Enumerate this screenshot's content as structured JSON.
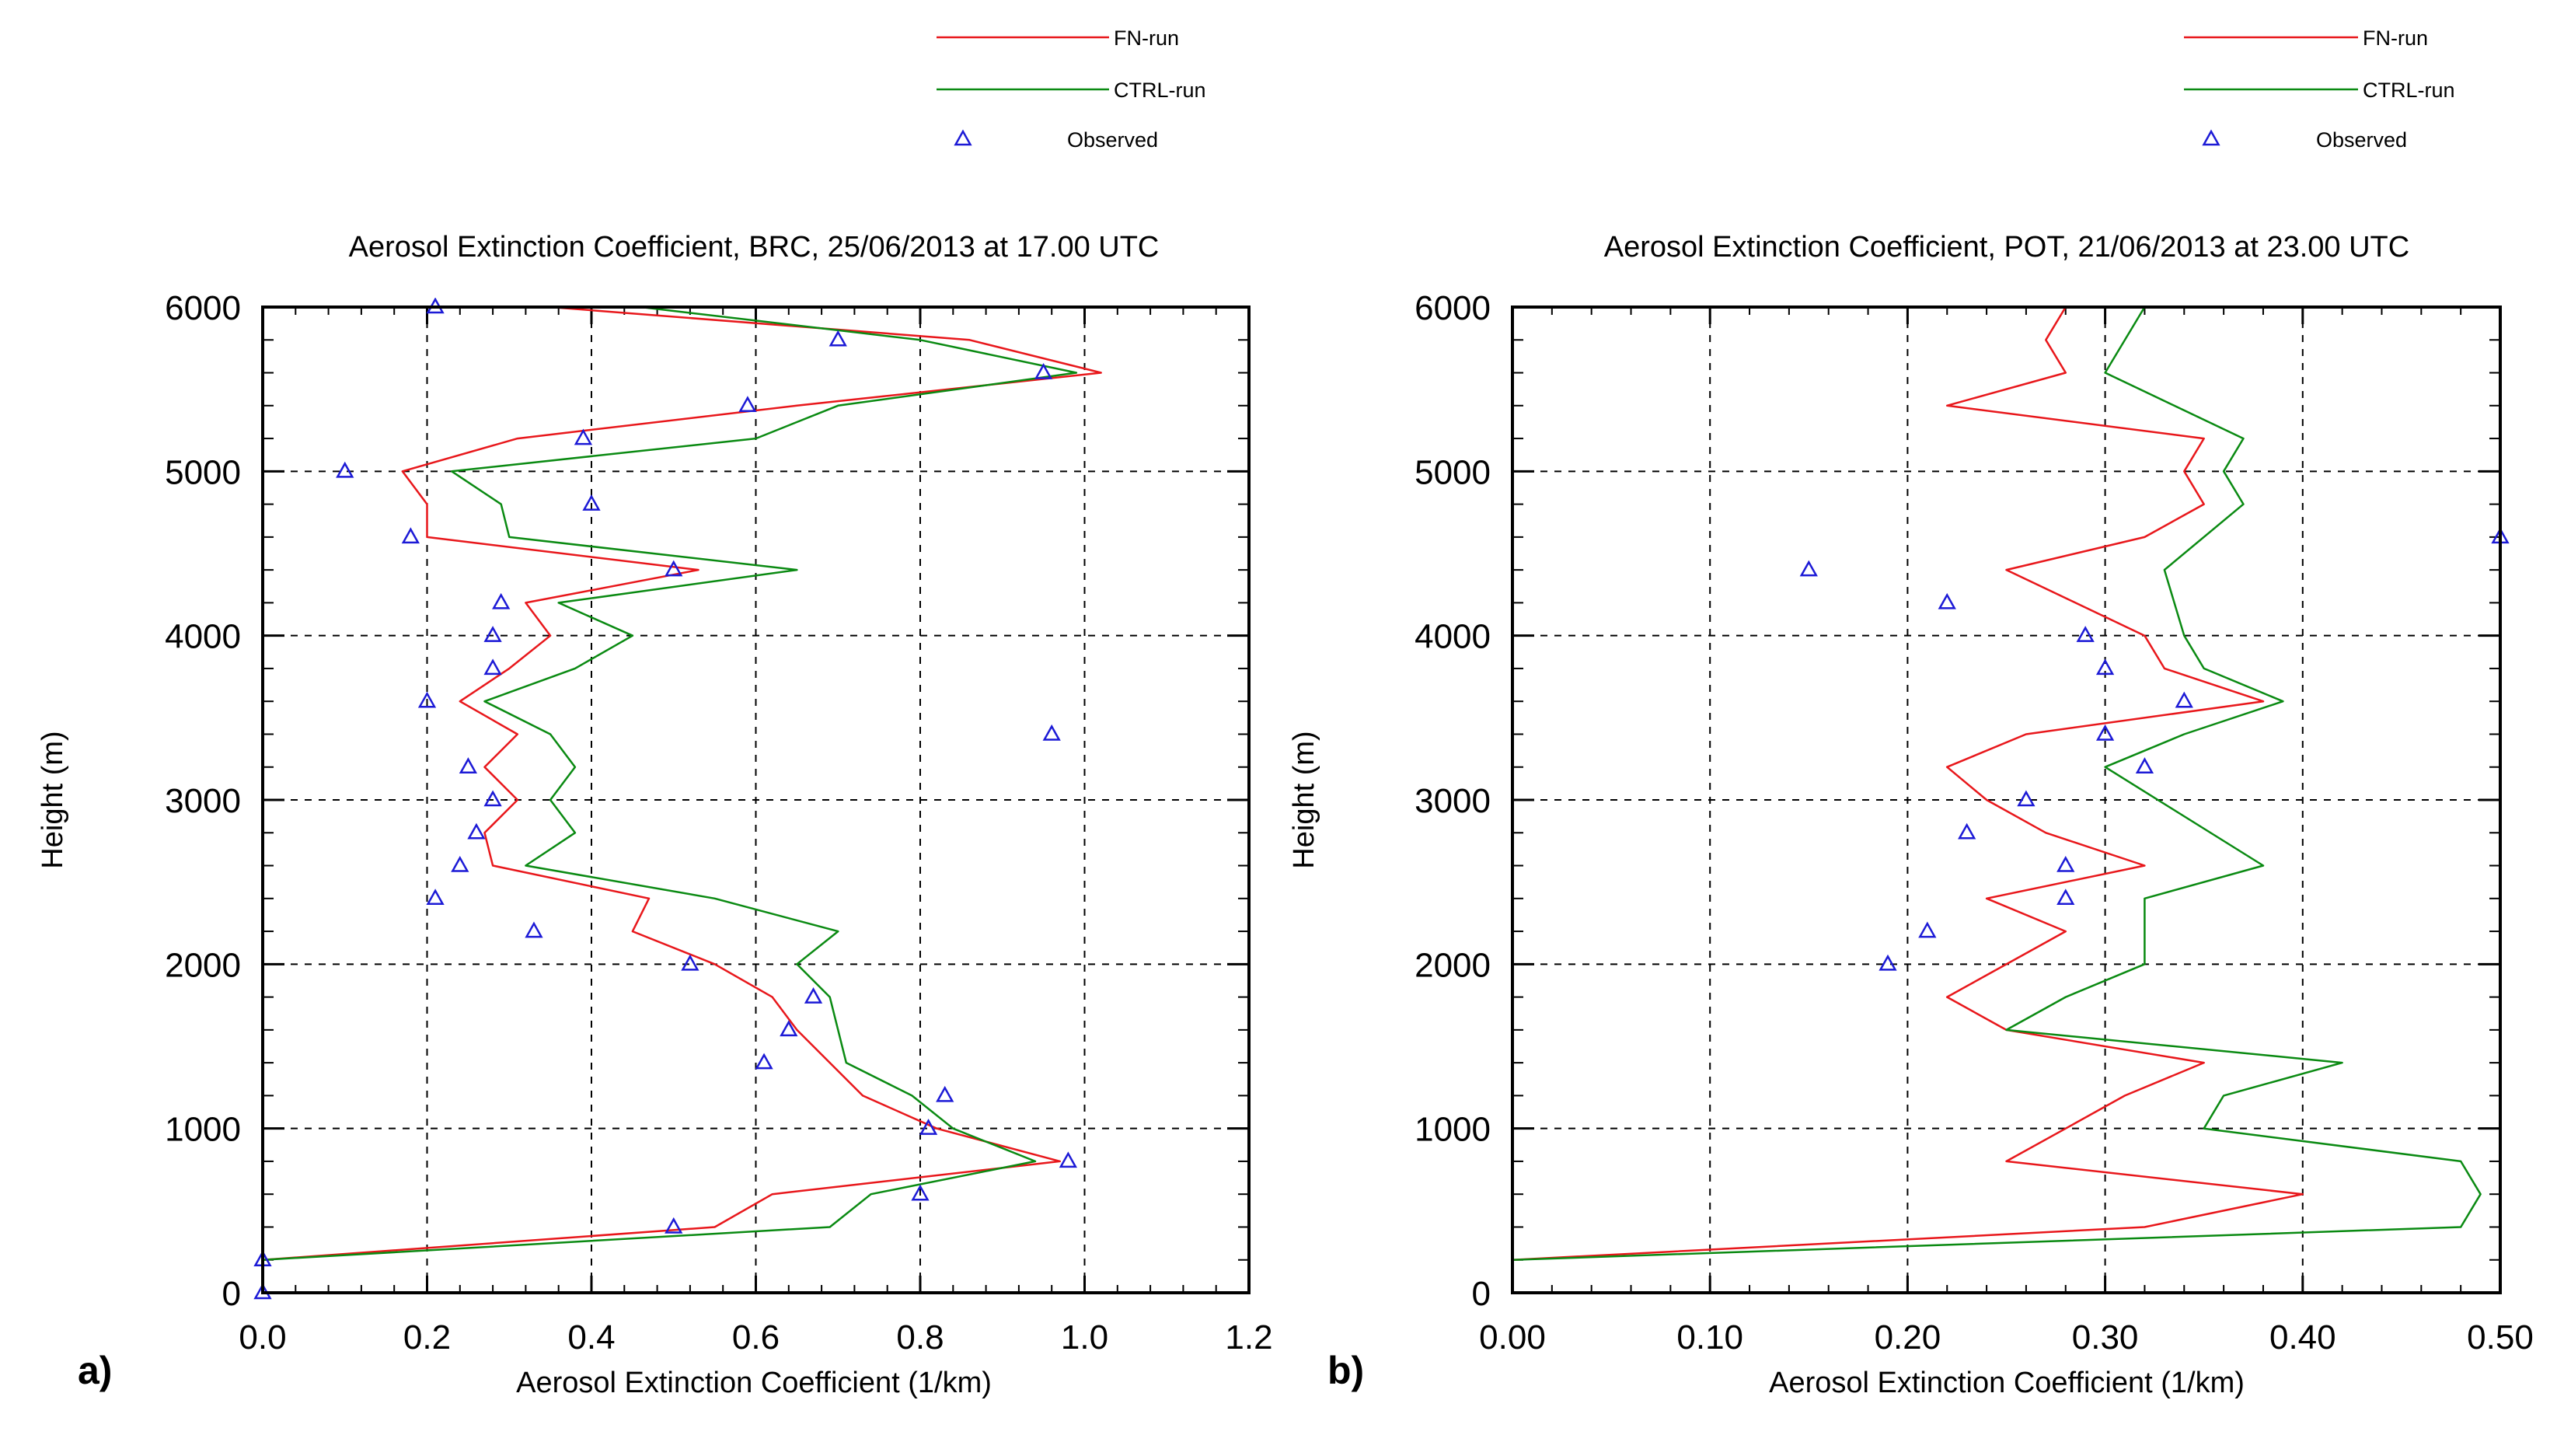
{
  "figure": {
    "series_styles": {
      "FN-run": {
        "color": "#e8171b",
        "kind": "line"
      },
      "CTRL-run": {
        "color": "#0a8a12",
        "kind": "line"
      },
      "Observed": {
        "color": "#1c1ad6",
        "kind": "marker",
        "marker": "triangle-icon"
      }
    }
  },
  "chart_data": [
    {
      "panel_label": "a)",
      "type": "line",
      "title": "Aerosol Extinction Coefficient, BRC, 25/06/2013 at 17.00 UTC",
      "xlabel": "Aerosol Extinction Coefficient (1/km)",
      "ylabel": "Height (m)",
      "xlim": [
        0,
        1.2
      ],
      "ylim": [
        0,
        6000
      ],
      "xticks": [
        "0.0",
        "0.2",
        "0.4",
        "0.6",
        "0.8",
        "1.0",
        "1.2"
      ],
      "xtick_values": [
        0,
        0.2,
        0.4,
        0.6,
        0.8,
        1.0,
        1.2
      ],
      "yticks": [
        "0",
        "1000",
        "2000",
        "3000",
        "4000",
        "5000",
        "6000"
      ],
      "ytick_values": [
        0,
        1000,
        2000,
        3000,
        4000,
        5000,
        6000
      ],
      "legend": [
        "FN-run",
        "CTRL-run",
        "Observed"
      ],
      "grid": true,
      "series": [
        {
          "name": "FN-run",
          "points": [
            [
              0,
              200
            ],
            [
              0.55,
              400
            ],
            [
              0.62,
              600
            ],
            [
              0.97,
              800
            ],
            [
              0.82,
              1000
            ],
            [
              0.73,
              1200
            ],
            [
              0.69,
              1400
            ],
            [
              0.65,
              1600
            ],
            [
              0.62,
              1800
            ],
            [
              0.55,
              2000
            ],
            [
              0.45,
              2200
            ],
            [
              0.47,
              2400
            ],
            [
              0.28,
              2600
            ],
            [
              0.27,
              2800
            ],
            [
              0.31,
              3000
            ],
            [
              0.27,
              3200
            ],
            [
              0.31,
              3400
            ],
            [
              0.24,
              3600
            ],
            [
              0.3,
              3800
            ],
            [
              0.35,
              4000
            ],
            [
              0.32,
              4200
            ],
            [
              0.53,
              4400
            ],
            [
              0.2,
              4600
            ],
            [
              0.2,
              4800
            ],
            [
              0.17,
              5000
            ],
            [
              0.31,
              5200
            ],
            [
              0.65,
              5400
            ],
            [
              1.02,
              5600
            ],
            [
              0.86,
              5800
            ],
            [
              0.35,
              6000
            ]
          ]
        },
        {
          "name": "CTRL-run",
          "points": [
            [
              0,
              200
            ],
            [
              0.69,
              400
            ],
            [
              0.74,
              600
            ],
            [
              0.94,
              800
            ],
            [
              0.84,
              1000
            ],
            [
              0.79,
              1200
            ],
            [
              0.71,
              1400
            ],
            [
              0.7,
              1600
            ],
            [
              0.69,
              1800
            ],
            [
              0.65,
              2000
            ],
            [
              0.7,
              2200
            ],
            [
              0.55,
              2400
            ],
            [
              0.32,
              2600
            ],
            [
              0.38,
              2800
            ],
            [
              0.35,
              3000
            ],
            [
              0.38,
              3200
            ],
            [
              0.35,
              3400
            ],
            [
              0.27,
              3600
            ],
            [
              0.38,
              3800
            ],
            [
              0.45,
              4000
            ],
            [
              0.36,
              4200
            ],
            [
              0.65,
              4400
            ],
            [
              0.3,
              4600
            ],
            [
              0.29,
              4800
            ],
            [
              0.23,
              5000
            ],
            [
              0.6,
              5200
            ],
            [
              0.7,
              5400
            ],
            [
              0.99,
              5600
            ],
            [
              0.8,
              5800
            ],
            [
              0.46,
              6000
            ]
          ]
        },
        {
          "name": "Observed",
          "points": [
            [
              0,
              0
            ],
            [
              0,
              200
            ],
            [
              0.5,
              400
            ],
            [
              0.8,
              600
            ],
            [
              0.98,
              800
            ],
            [
              0.81,
              1000
            ],
            [
              0.83,
              1200
            ],
            [
              0.61,
              1400
            ],
            [
              0.64,
              1600
            ],
            [
              0.67,
              1800
            ],
            [
              0.52,
              2000
            ],
            [
              0.33,
              2200
            ],
            [
              0.21,
              2400
            ],
            [
              0.24,
              2600
            ],
            [
              0.26,
              2800
            ],
            [
              0.28,
              3000
            ],
            [
              0.25,
              3200
            ],
            [
              0.96,
              3400
            ],
            [
              0.2,
              3600
            ],
            [
              0.28,
              3800
            ],
            [
              0.28,
              4000
            ],
            [
              0.29,
              4200
            ],
            [
              0.5,
              4400
            ],
            [
              0.18,
              4600
            ],
            [
              0.4,
              4800
            ],
            [
              0.1,
              5000
            ],
            [
              0.39,
              5200
            ],
            [
              0.59,
              5400
            ],
            [
              0.95,
              5600
            ],
            [
              0.7,
              5800
            ],
            [
              0.21,
              6000
            ]
          ]
        }
      ]
    },
    {
      "panel_label": "b)",
      "type": "line",
      "title": "Aerosol Extinction Coefficient, POT, 21/06/2013 at 23.00 UTC",
      "xlabel": "Aerosol Extinction Coefficient (1/km)",
      "ylabel": "Height (m)",
      "xlim": [
        0,
        0.5
      ],
      "ylim": [
        0,
        6000
      ],
      "xticks": [
        "0.00",
        "0.10",
        "0.20",
        "0.30",
        "0.40",
        "0.50"
      ],
      "xtick_values": [
        0,
        0.1,
        0.2,
        0.3,
        0.4,
        0.5
      ],
      "yticks": [
        "0",
        "1000",
        "2000",
        "3000",
        "4000",
        "5000",
        "6000"
      ],
      "ytick_values": [
        0,
        1000,
        2000,
        3000,
        4000,
        5000,
        6000
      ],
      "legend": [
        "FN-run",
        "CTRL-run",
        "Observed"
      ],
      "grid": true,
      "series": [
        {
          "name": "FN-run",
          "points": [
            [
              0,
              200
            ],
            [
              0.32,
              400
            ],
            [
              0.4,
              600
            ],
            [
              0.25,
              800
            ],
            [
              0.28,
              1000
            ],
            [
              0.31,
              1200
            ],
            [
              0.35,
              1400
            ],
            [
              0.25,
              1600
            ],
            [
              0.22,
              1800
            ],
            [
              0.28,
              2200
            ],
            [
              0.24,
              2400
            ],
            [
              0.32,
              2600
            ],
            [
              0.27,
              2800
            ],
            [
              0.24,
              3000
            ],
            [
              0.22,
              3200
            ],
            [
              0.26,
              3400
            ],
            [
              0.38,
              3600
            ],
            [
              0.33,
              3800
            ],
            [
              0.32,
              4000
            ],
            [
              0.25,
              4400
            ],
            [
              0.32,
              4600
            ],
            [
              0.35,
              4800
            ],
            [
              0.34,
              5000
            ],
            [
              0.35,
              5200
            ],
            [
              0.22,
              5400
            ],
            [
              0.28,
              5600
            ],
            [
              0.27,
              5800
            ],
            [
              0.28,
              6000
            ]
          ]
        },
        {
          "name": "CTRL-run",
          "points": [
            [
              0,
              200
            ],
            [
              0.48,
              400
            ],
            [
              0.49,
              600
            ],
            [
              0.48,
              800
            ],
            [
              0.35,
              1000
            ],
            [
              0.36,
              1200
            ],
            [
              0.42,
              1400
            ],
            [
              0.25,
              1600
            ],
            [
              0.28,
              1800
            ],
            [
              0.32,
              2000
            ],
            [
              0.32,
              2400
            ],
            [
              0.38,
              2600
            ],
            [
              0.3,
              3200
            ],
            [
              0.34,
              3400
            ],
            [
              0.39,
              3600
            ],
            [
              0.35,
              3800
            ],
            [
              0.34,
              4000
            ],
            [
              0.33,
              4400
            ],
            [
              0.37,
              4800
            ],
            [
              0.36,
              5000
            ],
            [
              0.37,
              5200
            ],
            [
              0.3,
              5600
            ],
            [
              0.32,
              6000
            ]
          ]
        },
        {
          "name": "Observed",
          "points": [
            [
              0.19,
              2000
            ],
            [
              0.21,
              2200
            ],
            [
              0.28,
              2400
            ],
            [
              0.28,
              2600
            ],
            [
              0.23,
              2800
            ],
            [
              0.26,
              3000
            ],
            [
              0.32,
              3200
            ],
            [
              0.3,
              3400
            ],
            [
              0.34,
              3600
            ],
            [
              0.3,
              3800
            ],
            [
              0.29,
              4000
            ],
            [
              0.22,
              4200
            ],
            [
              0.15,
              4400
            ],
            [
              0.5,
              4600
            ]
          ]
        }
      ]
    }
  ]
}
